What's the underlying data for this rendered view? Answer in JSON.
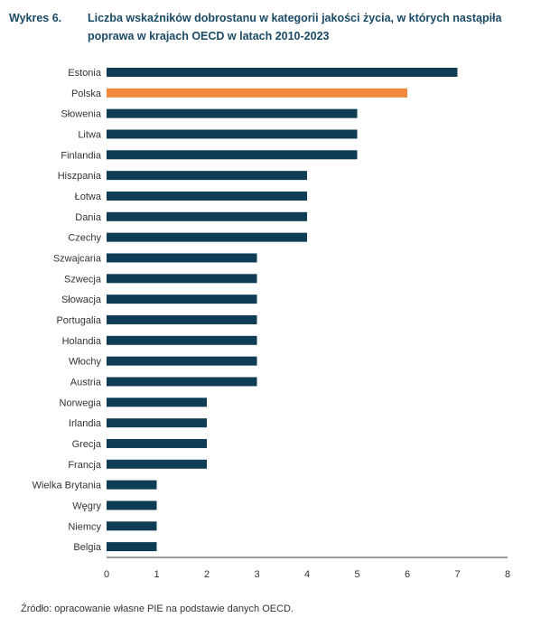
{
  "header": {
    "label": "Wykres 6.",
    "title": "Liczba wskaźników dobrostanu w kategorii jakości życia, w których nastąpiła poprawa w krajach OECD w latach 2010-2023"
  },
  "source": "Źródło: opracowanie własne PIE na podstawie danych OECD.",
  "colors": {
    "bar": "#0e3d55",
    "highlight": "#f0893b",
    "title": "#1a4a66"
  },
  "chart_data": {
    "type": "bar",
    "orientation": "horizontal",
    "title": "Liczba wskaźników dobrostanu w kategorii jakości życia, w których nastąpiła poprawa w krajach OECD w latach 2010-2023",
    "xlabel": "",
    "ylabel": "",
    "xlim": [
      0,
      8
    ],
    "xticks": [
      0,
      1,
      2,
      3,
      4,
      5,
      6,
      7,
      8
    ],
    "grid": false,
    "highlight": "Polska",
    "categories": [
      "Estonia",
      "Polska",
      "Słowenia",
      "Litwa",
      "Finlandia",
      "Hiszpania",
      "Łotwa",
      "Dania",
      "Czechy",
      "Szwajcaria",
      "Szwecja",
      "Słowacja",
      "Portugalia",
      "Holandia",
      "Włochy",
      "Austria",
      "Norwegia",
      "Irlandia",
      "Grecja",
      "Francja",
      "Wielka Brytania",
      "Węgry",
      "Niemcy",
      "Belgia"
    ],
    "values": [
      7,
      6,
      5,
      5,
      5,
      4,
      4,
      4,
      4,
      3,
      3,
      3,
      3,
      3,
      3,
      3,
      2,
      2,
      2,
      2,
      1,
      1,
      1,
      1
    ]
  }
}
